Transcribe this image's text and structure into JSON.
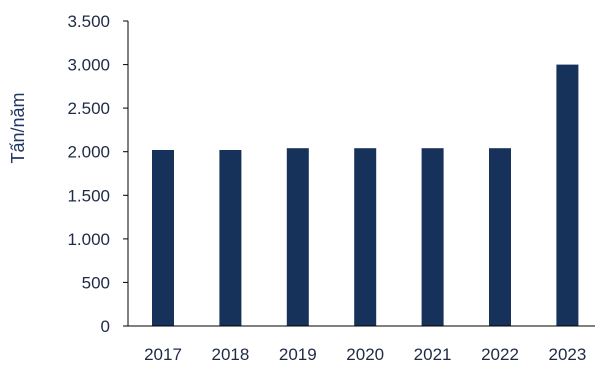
{
  "chart_data": {
    "type": "bar",
    "title": "",
    "xlabel": "",
    "ylabel": "Tấn/năm",
    "categories": [
      "2017",
      "2018",
      "2019",
      "2020",
      "2021",
      "2022",
      "2023"
    ],
    "values": [
      2020,
      2020,
      2040,
      2040,
      2040,
      2040,
      3000
    ],
    "ylim": [
      0,
      3500
    ],
    "yticks": [
      0,
      500,
      1000,
      1500,
      2000,
      2500,
      3000,
      3500
    ],
    "ytick_labels": [
      "0",
      "500",
      "1.000",
      "1.500",
      "2.000",
      "2.500",
      "3.000",
      "3.500"
    ],
    "grid": false,
    "legend": "none",
    "colors": {
      "bar": "#17325a",
      "axis": "#000000"
    }
  }
}
